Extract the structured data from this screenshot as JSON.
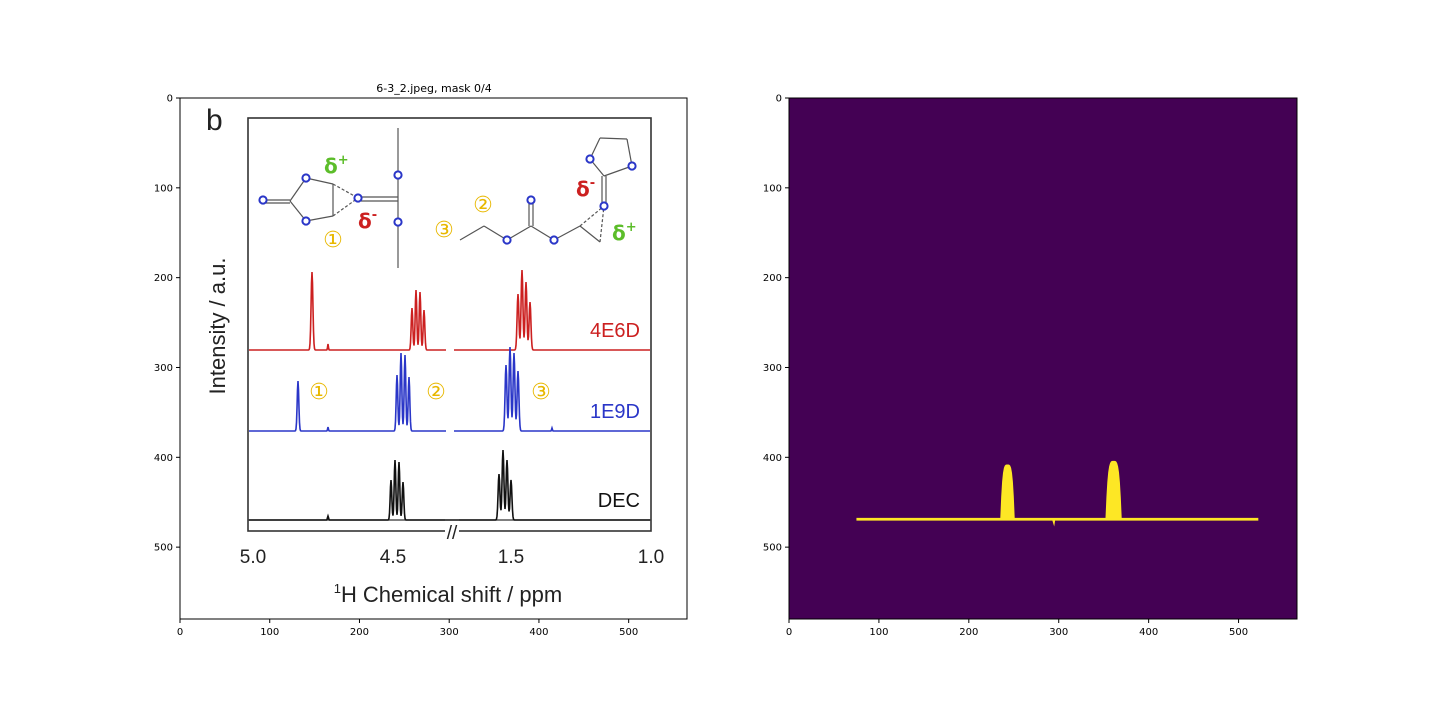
{
  "figure": {
    "left_title": "6-3_2.jpeg, mask 0/4",
    "x_ticks": [
      "0",
      "100",
      "200",
      "300",
      "400",
      "500"
    ],
    "y_ticks": [
      "0",
      "100",
      "200",
      "300",
      "400",
      "500"
    ]
  },
  "left_image": {
    "panel_letter": "b",
    "y_axis_label": "Intensity / a.u.",
    "x_axis_label": "Chemical shift / ppm",
    "x_axis_label_sup": "1",
    "x_axis_label_nucleus": "H",
    "x_tick_labels": [
      "5.0",
      "4.5",
      "1.5",
      "1.0"
    ],
    "axis_break": "//",
    "series_labels": [
      "4E6D",
      "1E9D",
      "DEC"
    ],
    "peak_markers": [
      "①",
      "②",
      "③"
    ],
    "structure_markers": [
      "①",
      "②",
      "③"
    ],
    "delta_plus": "δ",
    "delta_minus": "δ",
    "sup_plus": "+",
    "sup_minus": "-"
  },
  "colors": {
    "mask_background": "#440154",
    "mask_foreground": "#fde725",
    "red_series": "#cc2020",
    "blue_series": "#2a36c8",
    "black_series": "#111111",
    "marker_yellow": "#e8b800",
    "green_delta": "#5cbd2a"
  },
  "chart_data": [
    {
      "type": "line",
      "title": "6-3_2.jpeg, mask 0/4",
      "xlabel": "",
      "ylabel": "",
      "xlim": [
        0,
        565
      ],
      "ylim": [
        580,
        0
      ],
      "x_ticks": [
        0,
        100,
        200,
        300,
        400,
        500
      ],
      "y_ticks": [
        0,
        100,
        200,
        300,
        400,
        500
      ],
      "grid": false,
      "content": "image of 1H NMR spectra panel b",
      "embedded_chart": {
        "type": "line",
        "xlabel": "1H Chemical shift / ppm",
        "ylabel": "Intensity / a.u.",
        "x_ticks": [
          5.0,
          4.5,
          1.5,
          1.0
        ],
        "series": [
          {
            "name": "4E6D",
            "peaks_ppm": [
              4.8,
              4.37,
              1.48
            ]
          },
          {
            "name": "1E9D",
            "peaks_ppm": [
              4.85,
              4.4,
              1.56
            ]
          },
          {
            "name": "DEC",
            "peaks_ppm": [
              4.41,
              1.58
            ]
          }
        ]
      }
    },
    {
      "type": "heatmap",
      "title": "",
      "xlabel": "",
      "ylabel": "",
      "xlim": [
        0,
        565
      ],
      "ylim": [
        580,
        0
      ],
      "x_ticks": [
        0,
        100,
        200,
        300,
        400,
        500
      ],
      "y_ticks": [
        0,
        100,
        200,
        300,
        400,
        500
      ],
      "grid": false,
      "values": [
        0,
        1
      ],
      "mask_baseline_y": 469,
      "mask_x_range": [
        75,
        522
      ],
      "mask_peaks": [
        {
          "x_center": 243,
          "top_y": 408,
          "width": 16
        },
        {
          "x_center": 361,
          "top_y": 404,
          "width": 18
        }
      ]
    }
  ]
}
